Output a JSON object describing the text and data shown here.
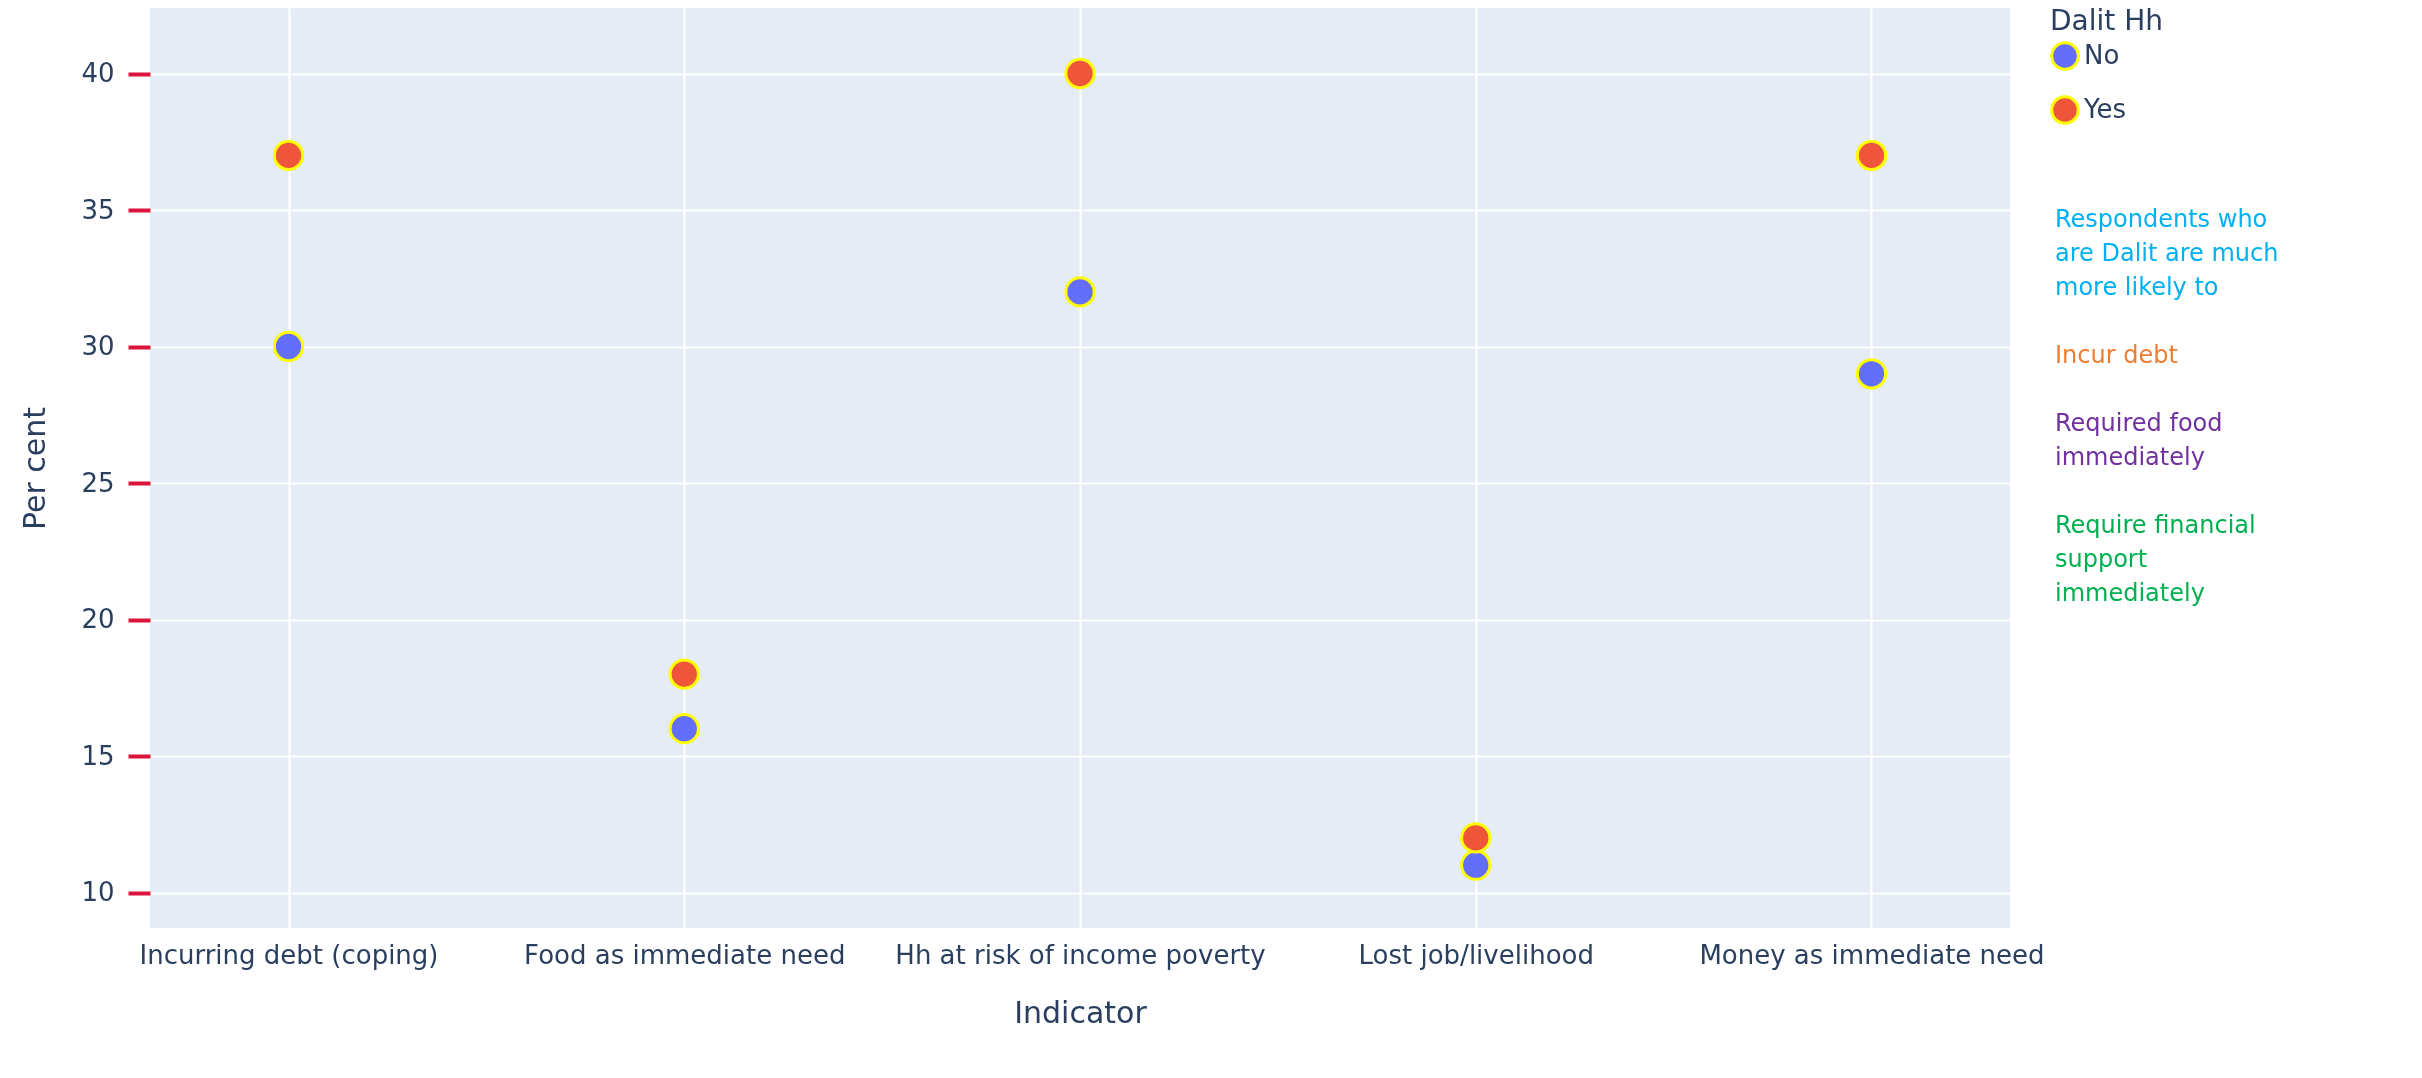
{
  "chart_data": {
    "type": "scatter",
    "xlabel": "Indicator",
    "ylabel": "Per cent",
    "legend_title": "Dalit Hh",
    "categories": [
      "Incurring debt (coping)",
      "Food as immediate need",
      "Hh at risk of income poverty",
      "Lost job/livelihood",
      "Money as immediate need"
    ],
    "series": [
      {
        "name": "No",
        "color": "#636efa",
        "values": [
          30,
          16,
          32,
          11,
          29
        ]
      },
      {
        "name": "Yes",
        "color": "#ef553b",
        "values": [
          37,
          18,
          40,
          12,
          37
        ]
      }
    ],
    "ylim": [
      8.7,
      42.4
    ],
    "yticks": [
      10,
      15,
      20,
      25,
      30,
      35,
      40
    ],
    "grid": true,
    "legend": "top right",
    "marker": "circle",
    "annotations": [
      "Respondents who are Dalit are much more likely to",
      "Incur debt",
      "Required food immediately",
      "Require financial support immediately"
    ]
  }
}
